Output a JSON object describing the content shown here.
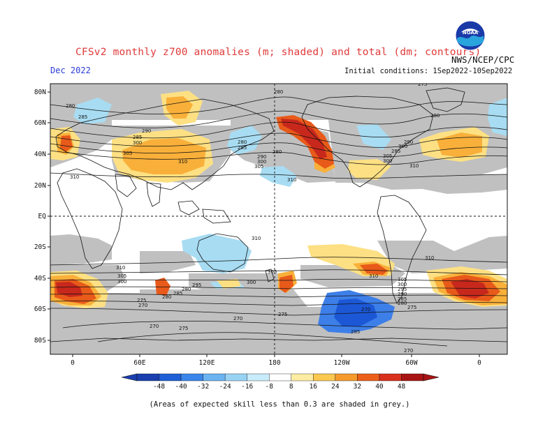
{
  "header": {
    "title": "CFSv2 monthly z700 anomalies (m; shaded) and total (dm; contours)",
    "agency": "NWS/NCEP/CPC",
    "valid": "Dec 2022",
    "init": "Initial conditions: 1Sep2022-10Sep2022"
  },
  "logo": {
    "icon": "noaa-logo",
    "text": "NOAA"
  },
  "map": {
    "lat_labels": [
      "80N",
      "60N",
      "40N",
      "20N",
      "EQ",
      "20S",
      "40S",
      "60S",
      "80S"
    ],
    "lon_labels": [
      "0",
      "60E",
      "120E",
      "180",
      "120W",
      "60W",
      "0"
    ],
    "contour_labels": [
      "275",
      "280",
      "285",
      "290",
      "300",
      "305",
      "310",
      "270",
      "295"
    ],
    "colors": {
      "grey_low_skill": "#c0c0c0",
      "neg_strong": "#1c58d6",
      "neg_med": "#3d7fe8",
      "neg_light": "#a8dcf2",
      "pos_light": "#fde083",
      "pos_med": "#f9b03a",
      "pos_strong": "#e85a1a",
      "pos_vstrong": "#c8281c"
    }
  },
  "colorbar": {
    "levels": [
      "-48",
      "-40",
      "-32",
      "-24",
      "-16",
      "-8",
      "8",
      "16",
      "24",
      "32",
      "40",
      "48"
    ],
    "colors": [
      "#1a3fae",
      "#1e5ed6",
      "#3a86ea",
      "#6cb3f2",
      "#99d3f4",
      "#c9ecfa",
      "#ffffff",
      "#fdeda3",
      "#fbc950",
      "#f59b2c",
      "#ec5f18",
      "#d8301c",
      "#a81414"
    ]
  },
  "footer": {
    "note": "(Areas of expected skill less than 0.3 are shaded in grey.)"
  }
}
